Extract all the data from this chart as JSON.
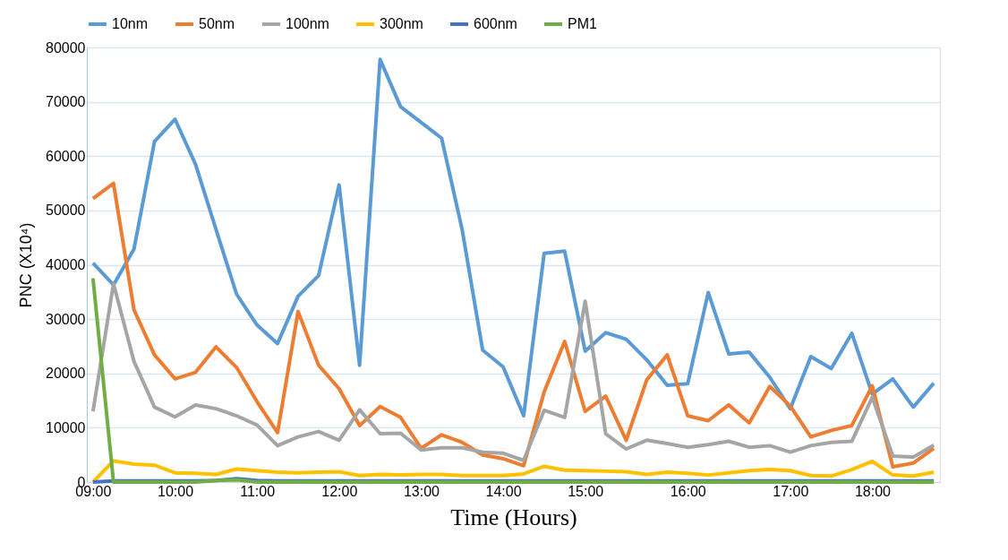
{
  "chart_data": {
    "type": "line",
    "xlabel": "Time (Hours)",
    "ylabel": "PNC (X10⁴)",
    "categories": [
      "09:00",
      null,
      null,
      null,
      "10:00",
      null,
      null,
      null,
      "11:00",
      null,
      null,
      null,
      "12:00",
      null,
      null,
      null,
      "13:00",
      null,
      null,
      null,
      "14:00",
      null,
      null,
      null,
      "15:00",
      null,
      null,
      null,
      null,
      "16:00",
      null,
      null,
      null,
      null,
      "17:00",
      null,
      null,
      null,
      "18:00",
      null,
      null,
      null
    ],
    "ylim": [
      0,
      80000
    ],
    "yticks": [
      0,
      10000,
      20000,
      30000,
      40000,
      50000,
      60000,
      70000,
      80000
    ],
    "grid": "y",
    "legend": "top",
    "marker": "none",
    "line_style": "solid",
    "series": [
      {
        "name": "10nm",
        "color": "#5b9bd5",
        "values": [
          40300,
          36300,
          42900,
          62700,
          66800,
          58500,
          46500,
          34600,
          28900,
          25500,
          34200,
          38000,
          54700,
          21500,
          77800,
          69100,
          66200,
          63300,
          46500,
          24300,
          21200,
          12200,
          42100,
          42500,
          24100,
          27500,
          26300,
          22500,
          17800,
          18100,
          34900,
          23600,
          23900,
          19300,
          13500,
          23100,
          20900,
          27400,
          16200,
          19000,
          13800,
          18200
        ]
      },
      {
        "name": "50nm",
        "color": "#ed7d31",
        "values": [
          52200,
          55000,
          31700,
          23400,
          19000,
          20200,
          24900,
          21100,
          14800,
          9100,
          31400,
          21500,
          17200,
          10400,
          13900,
          11900,
          6200,
          8700,
          7300,
          5000,
          4300,
          3000,
          16600,
          25900,
          13000,
          15800,
          7700,
          18800,
          23400,
          12200,
          11300,
          14200,
          10900,
          17600,
          14000,
          8300,
          9500,
          10400,
          17700,
          2800,
          3500,
          6200
        ]
      },
      {
        "name": "100nm",
        "color": "#a5a5a5",
        "values": [
          13000,
          36500,
          22200,
          13800,
          12000,
          14200,
          13500,
          12200,
          10500,
          6700,
          8300,
          9300,
          7700,
          13300,
          8900,
          9000,
          5900,
          6300,
          6300,
          5500,
          5300,
          4000,
          13200,
          11900,
          33300,
          8900,
          6100,
          7700,
          7100,
          6400,
          6900,
          7500,
          6400,
          6700,
          5500,
          6700,
          7300,
          7500,
          15600,
          4800,
          4600,
          6800
        ]
      },
      {
        "name": "300nm",
        "color": "#ffc000",
        "values": [
          0,
          3900,
          3300,
          3100,
          1700,
          1600,
          1400,
          2400,
          2100,
          1800,
          1700,
          1800,
          1900,
          1200,
          1400,
          1300,
          1400,
          1400,
          1200,
          1200,
          1200,
          1500,
          2900,
          2200,
          2100,
          2000,
          1900,
          1400,
          1800,
          1600,
          1300,
          1700,
          2100,
          2300,
          2100,
          1200,
          1100,
          2300,
          3800,
          1300,
          1100,
          1800
        ]
      },
      {
        "name": "600nm",
        "color": "#4472c4",
        "values": [
          0,
          200,
          200,
          200,
          200,
          200,
          300,
          600,
          300,
          200,
          200,
          200,
          200,
          200,
          200,
          200,
          200,
          200,
          200,
          200,
          200,
          200,
          200,
          200,
          200,
          200,
          200,
          200,
          200,
          200,
          200,
          200,
          200,
          200,
          200,
          200,
          200,
          200,
          200,
          200,
          200,
          200
        ]
      },
      {
        "name": "PM1",
        "color": "#70ad47",
        "values": [
          37500,
          0,
          0,
          0,
          0,
          0,
          300,
          400,
          0,
          0,
          0,
          0,
          0,
          0,
          0,
          0,
          0,
          0,
          0,
          0,
          0,
          0,
          0,
          0,
          0,
          0,
          0,
          0,
          0,
          0,
          0,
          0,
          0,
          0,
          0,
          0,
          0,
          0,
          0,
          0,
          0,
          0
        ]
      }
    ]
  }
}
